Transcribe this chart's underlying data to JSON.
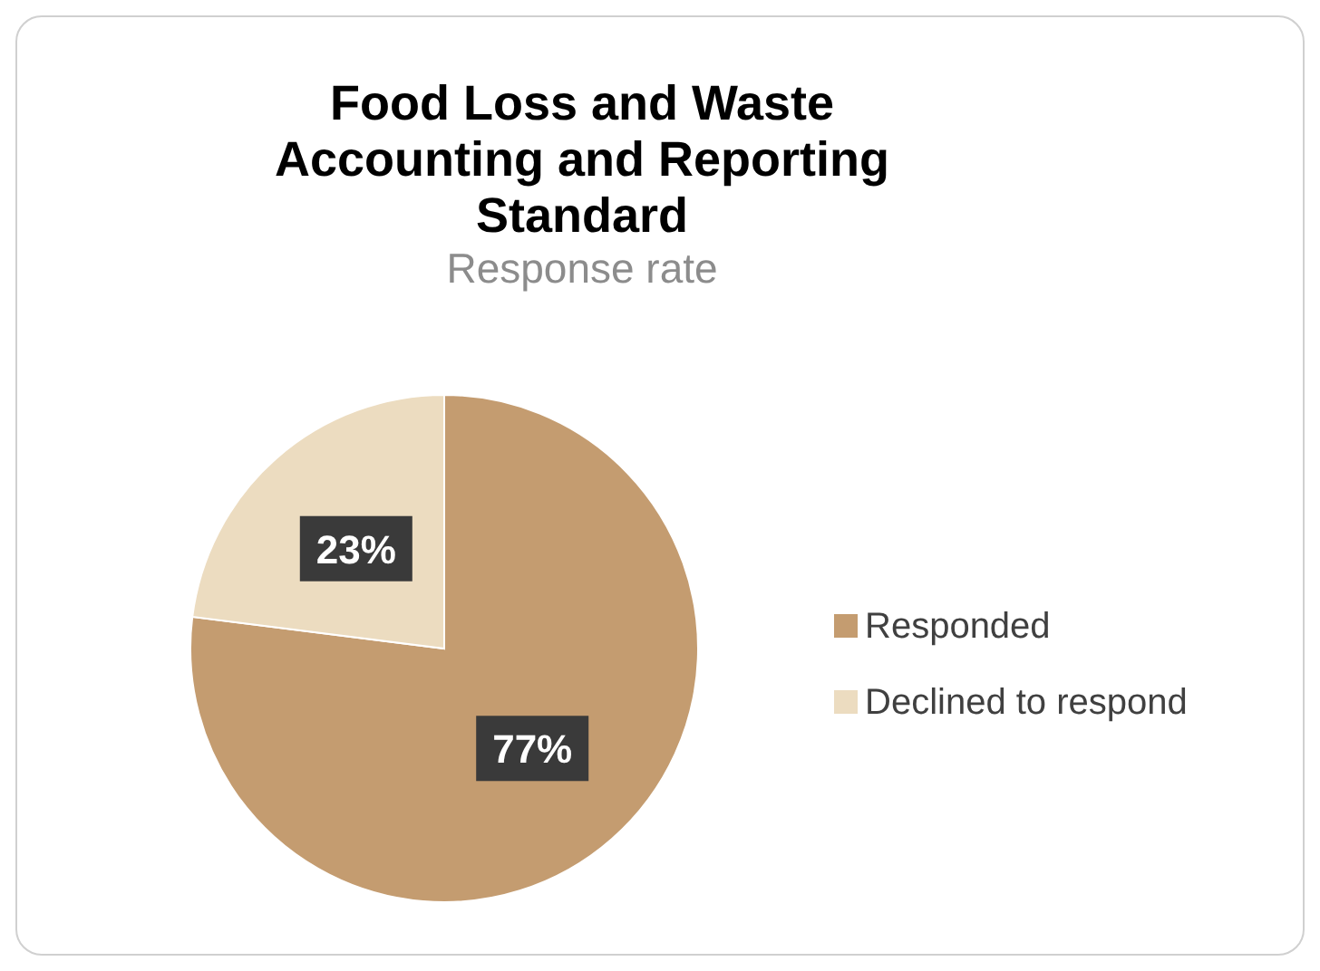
{
  "chart_data": {
    "type": "pie",
    "title": "Food Loss and Waste Accounting and Reporting Standard",
    "subtitle": "Response rate",
    "categories": [
      "Responded",
      "Declined to respond"
    ],
    "values": [
      77,
      23
    ],
    "colors": [
      "#c49c70",
      "#ecdcc0"
    ],
    "value_labels": [
      "77%",
      "23%"
    ],
    "legend": "right"
  }
}
